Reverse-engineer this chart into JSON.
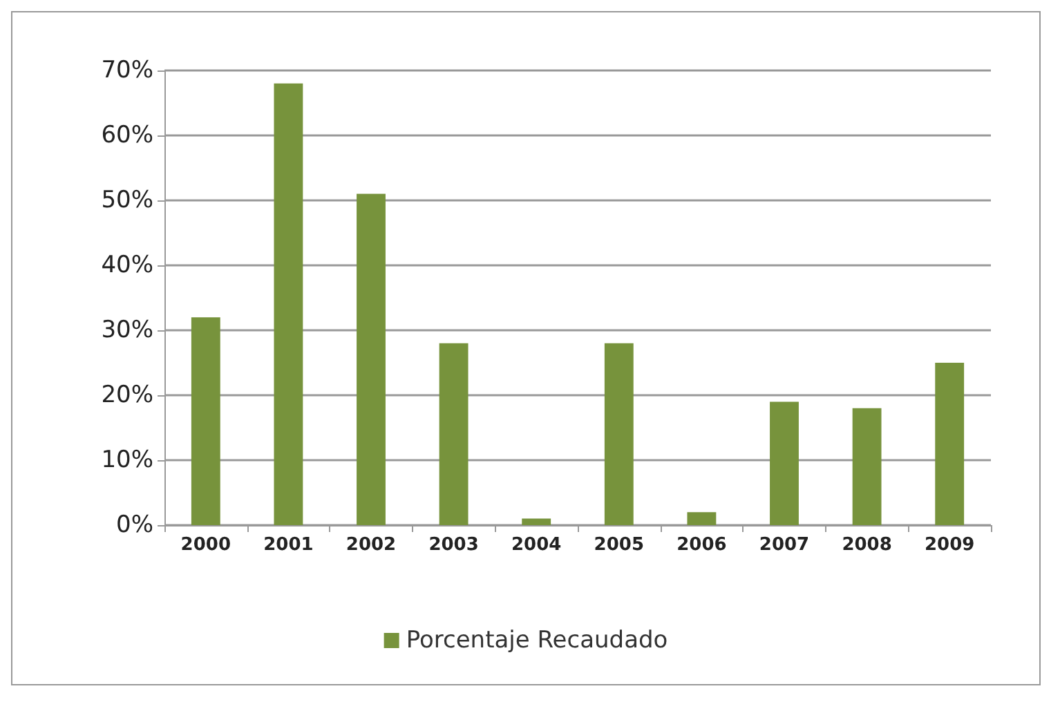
{
  "chart_data": {
    "type": "bar",
    "categories": [
      "2000",
      "2001",
      "2002",
      "2003",
      "2004",
      "2005",
      "2006",
      "2007",
      "2008",
      "2009"
    ],
    "series": [
      {
        "name": "Porcentaje Recaudado",
        "color": "#77933c",
        "values": [
          32,
          68,
          51,
          28,
          1,
          28,
          2,
          19,
          18,
          25
        ]
      }
    ],
    "ylim": [
      0,
      70
    ],
    "yticks": [
      {
        "value": 0,
        "label": "0%"
      },
      {
        "value": 10,
        "label": "10%"
      },
      {
        "value": 20,
        "label": "20%"
      },
      {
        "value": 30,
        "label": "30%"
      },
      {
        "value": 40,
        "label": "40%"
      },
      {
        "value": 50,
        "label": "50%"
      },
      {
        "value": 60,
        "label": "60%"
      },
      {
        "value": 70,
        "label": "70%"
      }
    ],
    "grid": "y",
    "legend": "bottom"
  }
}
